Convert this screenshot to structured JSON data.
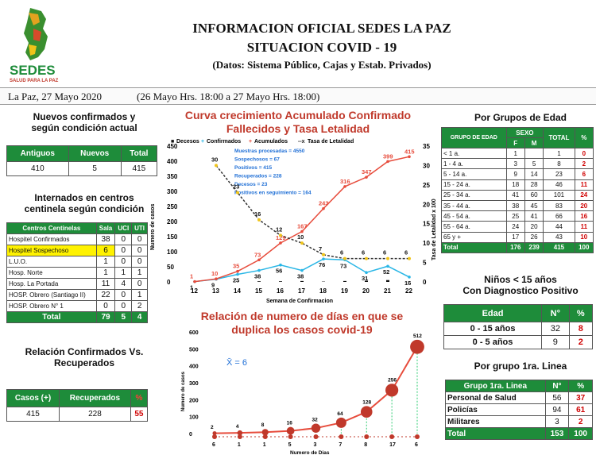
{
  "header": {
    "title": "INFORMACION OFICIAL SEDES LA PAZ",
    "subtitle": "SITUACION  COVID - 19",
    "source": "(Datos: Sistema Público, Cajas y Estab. Privados)",
    "logo_text": "SEDES",
    "logo_subtext": "SALUD PARA LA PAZ",
    "date": "La Paz, 27 Mayo  2020",
    "range": "(26 Mayo Hrs. 18:00 a 27 Mayo Hrs. 18:00)"
  },
  "colors": {
    "green": "#1e8c3a",
    "red": "#c0392b",
    "yellow": "#fff200",
    "cyan": "#29b6e6"
  },
  "nuevos": {
    "title1": "Nuevos confirmados y",
    "title2": "según condición actual",
    "headers": [
      "Antiguos",
      "Nuevos",
      "Total"
    ],
    "values": [
      "410",
      "5",
      "415"
    ]
  },
  "internados": {
    "title1": "Internados en centros",
    "title2": "centinela según condición",
    "headers": [
      "Centros Centinelas",
      "Sala",
      "UCI",
      "UTI"
    ],
    "rows": [
      {
        "name": "Hospitel Confirmados",
        "sala": "38",
        "uci": "0",
        "uti": "0"
      },
      {
        "name": "Hospitel Sospechoso",
        "sala": "6",
        "uci": "0",
        "uti": "0"
      },
      {
        "name": "L.U.O.",
        "sala": "1",
        "uci": "0",
        "uti": "0"
      },
      {
        "name": "Hosp. Norte",
        "sala": "1",
        "uci": "1",
        "uti": "1"
      },
      {
        "name": "Hosp. La Portada",
        "sala": "11",
        "uci": "4",
        "uti": "0"
      },
      {
        "name": "HOSP. Obrero (Santiago II)",
        "sala": "22",
        "uci": "0",
        "uti": "1"
      },
      {
        "name": "HOSP. Obrero N° 1",
        "sala": "0",
        "uci": "0",
        "uti": "2"
      }
    ],
    "total": {
      "name": "Total",
      "sala": "79",
      "uci": "5",
      "uti": "4"
    }
  },
  "relacion": {
    "title1": "Relación Confirmados Vs.",
    "title2": "Recuperados",
    "headers": [
      "Casos (+)",
      "Recuperados",
      "%"
    ],
    "values": [
      "415",
      "228",
      "55"
    ]
  },
  "chart_data": [
    {
      "type": "line",
      "title": "Curva crecimiento Acumulado Confirmado Fallecidos y Tasa Letalidad",
      "xlabel": "Semana de Confirmacion",
      "ylabel": "Numero de casos",
      "y2label": "Tasa de Letalidad x 100",
      "x": [
        12,
        13,
        14,
        15,
        16,
        17,
        18,
        19,
        20,
        21,
        22
      ],
      "ylim": [
        0,
        450
      ],
      "y2lim": [
        0,
        35
      ],
      "yticks": [
        0,
        50,
        100,
        150,
        200,
        250,
        300,
        350,
        400,
        450
      ],
      "y2ticks": [
        0,
        5,
        10,
        15,
        20,
        25,
        30,
        35
      ],
      "legend": [
        "Decesos",
        "Confirmados",
        "Acumulados",
        "Tasa de Letalidad"
      ],
      "series": [
        {
          "name": "Decesos",
          "values": [
            null,
            null,
            1,
            2,
            2,
            3,
            1,
            3,
            4,
            6,
            1
          ]
        },
        {
          "name": "Confirmados",
          "values": [
            1,
            9,
            25,
            38,
            56,
            38,
            76,
            73,
            31,
            52,
            16
          ]
        },
        {
          "name": "Acumulados",
          "values": [
            1,
            10,
            35,
            73,
            129,
            167,
            243,
            316,
            347,
            399,
            415
          ]
        },
        {
          "name": "Tasa de Letalidad",
          "values": [
            null,
            30,
            23,
            16,
            12,
            10,
            7,
            6,
            6,
            6,
            6
          ]
        }
      ],
      "annotations": [
        "Muestras procesadas = 4550",
        "Sospechosos = 67",
        "Positivos = 415",
        "Recuperados = 228",
        "Decesos = 23",
        "Positivos en seguimiento = 164"
      ]
    },
    {
      "type": "line",
      "title": "Relación de numero de días en que se duplica los casos covid-19",
      "xlabel": "Numero de Dias",
      "ylabel": "Numero de casos",
      "categories": [
        "6",
        "1",
        "1",
        "5",
        "3",
        "7",
        "8",
        "17",
        "6"
      ],
      "values": [
        2,
        4,
        8,
        16,
        32,
        64,
        128,
        256,
        512
      ],
      "ylim": [
        0,
        600
      ],
      "yticks": [
        0,
        100,
        200,
        300,
        400,
        500,
        600
      ],
      "mean_label": "X̄ = 6"
    }
  ],
  "grupos_edad": {
    "title": "Por Grupos de  Edad",
    "headers": [
      "GRUPO DE EDAD",
      "SEXO",
      "TOTAL",
      "%"
    ],
    "subheaders": [
      "F",
      "M"
    ],
    "rows": [
      [
        "< 1 a.",
        "1",
        "",
        "1",
        "0"
      ],
      [
        "1 - 4 a.",
        "3",
        "5",
        "8",
        "2"
      ],
      [
        "5 - 14 a.",
        "9",
        "14",
        "23",
        "6"
      ],
      [
        "15 - 24 a.",
        "18",
        "28",
        "46",
        "11"
      ],
      [
        "25 - 34 a.",
        "41",
        "60",
        "101",
        "24"
      ],
      [
        "35 - 44 a.",
        "38",
        "45",
        "83",
        "20"
      ],
      [
        "45 - 54 a.",
        "25",
        "41",
        "66",
        "16"
      ],
      [
        "55 - 64 a.",
        "24",
        "20",
        "44",
        "11"
      ],
      [
        "65 y +",
        "17",
        "26",
        "43",
        "10"
      ]
    ],
    "total": [
      "Total",
      "176",
      "239",
      "415",
      "100"
    ]
  },
  "ninos": {
    "title1": "Niños < 15 años",
    "title2": "Con Diagnostico Positivo",
    "headers": [
      "Edad",
      "N°",
      "%"
    ],
    "rows": [
      [
        "0 - 15 años",
        "32",
        "8"
      ],
      [
        "0 - 5 años",
        "9",
        "2"
      ]
    ]
  },
  "grupo_linea": {
    "title": "Por grupo 1ra. Linea",
    "headers": [
      "Grupo 1ra. Linea",
      "N°",
      "%"
    ],
    "rows": [
      [
        "Personal de Salud",
        "56",
        "37"
      ],
      [
        "Policías",
        "94",
        "61"
      ],
      [
        "Militares",
        "3",
        "2"
      ]
    ],
    "total": [
      "Total",
      "153",
      "100"
    ]
  }
}
